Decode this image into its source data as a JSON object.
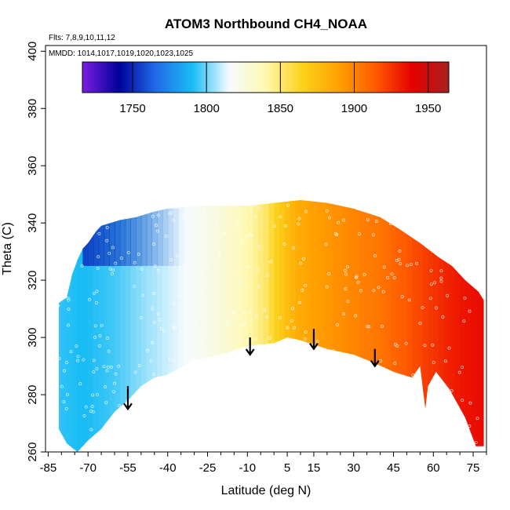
{
  "chart_data": {
    "type": "heatmap",
    "title": "ATOM3 Northbound CH4_NOAA",
    "flights_note": "Flts: 7,8,9,10,11,12",
    "dates_note": "MMDD: 1014,1017,1019,1020,1023,1025",
    "xlabel": "Latitude (deg N)",
    "ylabel": "Theta (C)",
    "xlim": [
      -86,
      80
    ],
    "ylim": [
      260,
      402
    ],
    "x_ticks": [
      -85,
      -70,
      -55,
      -40,
      -25,
      -10,
      5,
      15,
      30,
      45,
      60,
      75
    ],
    "x_minor_ticks": [
      -80,
      -75,
      -65,
      -60,
      -50,
      -45,
      -35,
      -30,
      -20,
      -15,
      -5,
      0,
      10,
      20,
      25,
      35,
      40,
      50,
      55,
      65,
      70,
      80
    ],
    "y_ticks": [
      260,
      280,
      300,
      320,
      340,
      360,
      380,
      400
    ],
    "colorbar": {
      "min": 1716,
      "max": 1964,
      "ticks": [
        1750,
        1800,
        1850,
        1900,
        1950
      ],
      "colors": [
        "#7a1fe0",
        "#00009a",
        "#1f6be8",
        "#19bcf5",
        "#f5fbff",
        "#fff8b0",
        "#fbd21a",
        "#ffa000",
        "#ff5a00",
        "#e60000",
        "#a82020"
      ]
    },
    "boundary": {
      "top": [
        [
          -81,
          312
        ],
        [
          -78,
          314
        ],
        [
          -76,
          322
        ],
        [
          -74,
          327
        ],
        [
          -72,
          331
        ],
        [
          -70,
          333
        ],
        [
          -67,
          337
        ],
        [
          -65,
          339
        ],
        [
          -58,
          341
        ],
        [
          -52,
          342
        ],
        [
          -45,
          344
        ],
        [
          -40,
          345
        ],
        [
          -30,
          346
        ],
        [
          -20,
          346
        ],
        [
          -10,
          346
        ],
        [
          0,
          347
        ],
        [
          10,
          348
        ],
        [
          20,
          347
        ],
        [
          30,
          345
        ],
        [
          40,
          342
        ],
        [
          47,
          338
        ],
        [
          55,
          333
        ],
        [
          62,
          328
        ],
        [
          67,
          325
        ],
        [
          72,
          320
        ],
        [
          77,
          316
        ],
        [
          79,
          313
        ]
      ],
      "bottom": [
        [
          79,
          262
        ],
        [
          76,
          262
        ],
        [
          72,
          272
        ],
        [
          66,
          282
        ],
        [
          61,
          288
        ],
        [
          58,
          283
        ],
        [
          57,
          275
        ],
        [
          55,
          290
        ],
        [
          52,
          286
        ],
        [
          45,
          288
        ],
        [
          38,
          291
        ],
        [
          30,
          294
        ],
        [
          20,
          296
        ],
        [
          10,
          299
        ],
        [
          5,
          300
        ],
        [
          0,
          298
        ],
        [
          -10,
          297
        ],
        [
          -20,
          294
        ],
        [
          -30,
          292
        ],
        [
          -40,
          287
        ],
        [
          -45,
          286
        ],
        [
          -50,
          283
        ],
        [
          -55,
          278
        ],
        [
          -60,
          274
        ],
        [
          -65,
          268
        ],
        [
          -70,
          264
        ],
        [
          -74,
          260
        ],
        [
          -78,
          263
        ],
        [
          -81,
          268
        ]
      ]
    },
    "field_profile": [
      [
        -86,
        1795
      ],
      [
        -72,
        1790
      ],
      [
        -60,
        1795
      ],
      [
        -48,
        1805
      ],
      [
        -38,
        1812
      ],
      [
        -25,
        1822
      ],
      [
        -15,
        1832
      ],
      [
        -8,
        1843
      ],
      [
        -3,
        1852
      ],
      [
        0,
        1862
      ],
      [
        5,
        1875
      ],
      [
        10,
        1885
      ],
      [
        20,
        1893
      ],
      [
        30,
        1899
      ],
      [
        40,
        1905
      ],
      [
        50,
        1915
      ],
      [
        60,
        1925
      ],
      [
        70,
        1933
      ],
      [
        80,
        1937
      ]
    ],
    "field_low_patch": {
      "x": [
        -72,
        -35
      ],
      "y": [
        325,
        345
      ],
      "value": 1752
    },
    "arrows": [
      {
        "x": -55,
        "y_top": 283,
        "y_bottom": 275
      },
      {
        "x": -9,
        "y_top": 300,
        "y_bottom": 294
      },
      {
        "x": 15,
        "y_top": 303,
        "y_bottom": 296
      },
      {
        "x": 38,
        "y_top": 296,
        "y_bottom": 290
      }
    ]
  }
}
